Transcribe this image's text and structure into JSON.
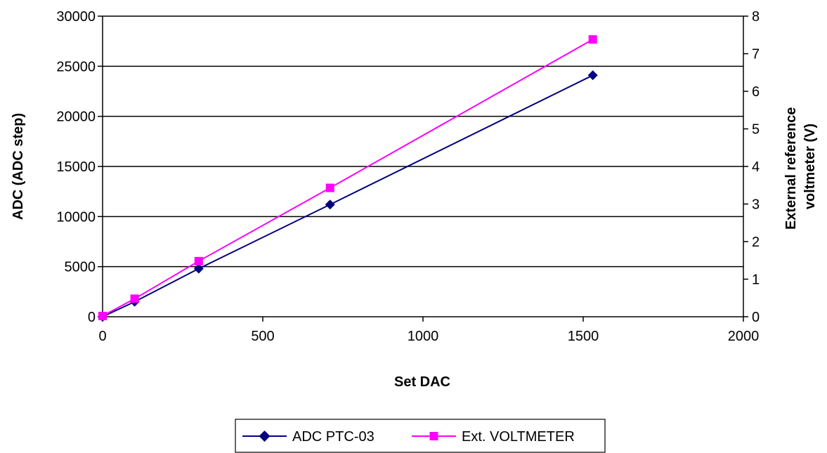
{
  "chart_data": {
    "type": "line",
    "xlabel": "Set DAC",
    "ylabel": "ADC (ADC step)",
    "y2label": [
      "External reference",
      "voltmeter (V)"
    ],
    "xlim": [
      0,
      2000
    ],
    "ylim": [
      0,
      30000
    ],
    "y2lim": [
      0,
      8
    ],
    "xticks": [
      0,
      500,
      1000,
      1500,
      2000
    ],
    "yticks": [
      0,
      5000,
      10000,
      15000,
      20000,
      25000,
      30000
    ],
    "y2ticks": [
      0,
      1,
      2,
      3,
      4,
      5,
      6,
      7,
      8
    ],
    "grid": "horizontal",
    "legend": "bottom",
    "series": [
      {
        "name": "ADC PTC-03",
        "axis": "left",
        "color": "#000080",
        "marker": "diamond",
        "x": [
          0,
          100,
          300,
          710,
          1530
        ],
        "y": [
          0,
          1500,
          4800,
          11200,
          24100
        ]
      },
      {
        "name": "Ext. VOLTMETER",
        "axis": "right",
        "color": "#FF00FF",
        "marker": "square",
        "x": [
          0,
          100,
          300,
          710,
          1530
        ],
        "y": [
          0.02,
          0.48,
          1.48,
          3.43,
          7.38
        ]
      }
    ]
  }
}
